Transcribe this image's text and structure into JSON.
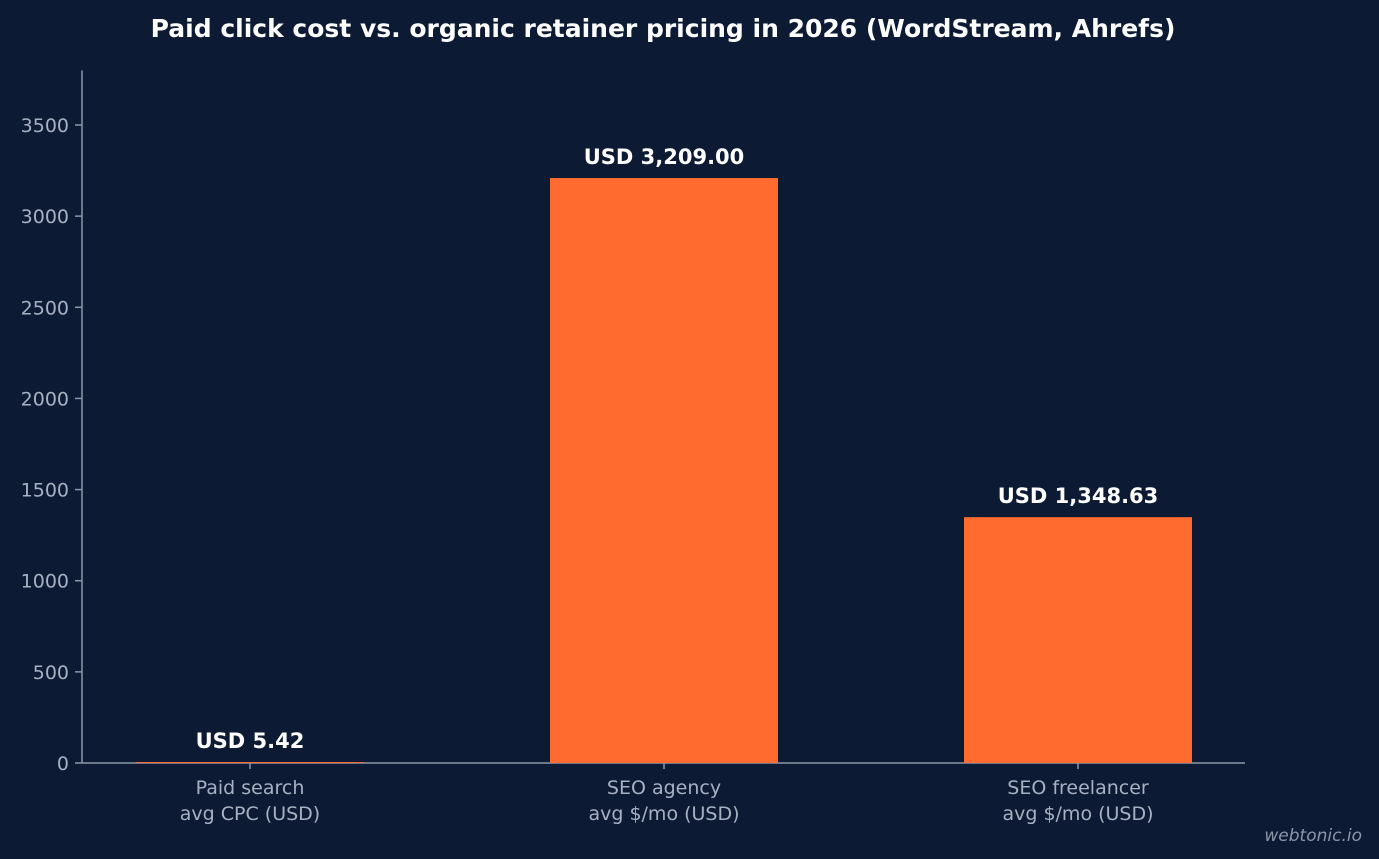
{
  "chart_data": {
    "type": "bar",
    "title": "Paid click cost vs. organic retainer pricing in 2026 (WordStream, Ahrefs)",
    "categories": [
      [
        "Paid search",
        "avg CPC (USD)"
      ],
      [
        "SEO agency",
        "avg $/mo (USD)"
      ],
      [
        "SEO freelancer",
        "avg $/mo (USD)"
      ]
    ],
    "values": [
      5.42,
      3209.0,
      1348.63
    ],
    "data_labels": [
      "USD 5.42",
      "USD 3,209.00",
      "USD 1,348.63"
    ],
    "xlabel": "",
    "ylabel": "",
    "ylim": [
      0,
      3800
    ],
    "yticks": [
      0,
      500,
      1000,
      1500,
      2000,
      2500,
      3000,
      3500
    ],
    "grid": false,
    "colors": {
      "background": "#0c1b33",
      "bar": "#ff6b2e",
      "axis": "#8c96a8",
      "tick_text": "#a8b1c2",
      "title_text": "#ffffff"
    }
  },
  "watermark": "webtonic.io"
}
